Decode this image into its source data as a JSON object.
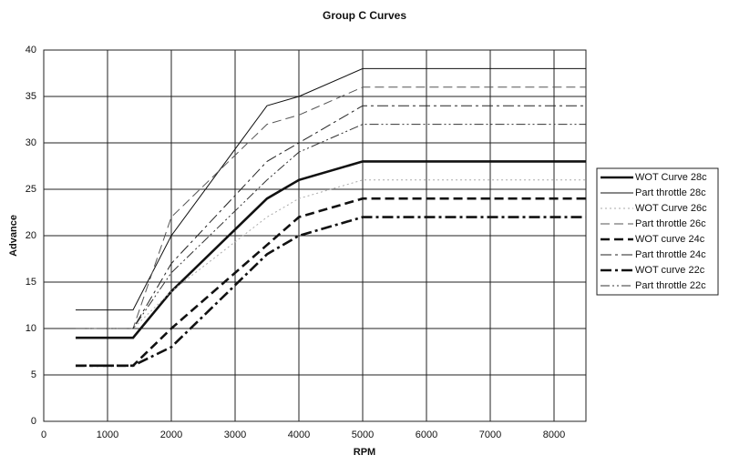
{
  "chart_data": {
    "type": "line",
    "title": "Group C Curves",
    "x_label": "RPM",
    "y_label": "Advance",
    "x": [
      500,
      1400,
      2000,
      3500,
      4000,
      5000,
      8500
    ],
    "xlim": [
      0,
      8500
    ],
    "xticks": [
      0,
      1000,
      2000,
      3000,
      4000,
      5000,
      6000,
      7000,
      8000
    ],
    "ylim": [
      0,
      40
    ],
    "yticks": [
      0,
      5,
      10,
      15,
      20,
      25,
      30,
      35,
      40
    ],
    "grid": true,
    "legend": "right",
    "series": [
      {
        "name": "WOT Curve 28c",
        "color": "#111111",
        "style": "solid",
        "weight": "heavy",
        "values": [
          9,
          9,
          14,
          24,
          26,
          28,
          28
        ]
      },
      {
        "name": "Part throttle 28c",
        "color": "#111111",
        "style": "solid",
        "weight": "light",
        "values": [
          12,
          12,
          20,
          34,
          35,
          38,
          38
        ]
      },
      {
        "name": "WOT Curve 26c",
        "color": "#aaaaaa",
        "style": "dotted",
        "weight": "light",
        "values": [
          10,
          10,
          14,
          22,
          24,
          26,
          26
        ]
      },
      {
        "name": "Part throttle 26c",
        "color": "#555555",
        "style": "dashed",
        "weight": "light",
        "values": [
          10,
          10,
          22,
          32,
          33,
          36,
          36
        ]
      },
      {
        "name": "WOT curve 24c",
        "color": "#111111",
        "style": "dashed",
        "weight": "heavy",
        "values": [
          6,
          6,
          10,
          19,
          22,
          24,
          24
        ]
      },
      {
        "name": "Part throttle 24c",
        "color": "#222222",
        "style": "dash-dot",
        "weight": "light",
        "values": [
          10,
          10,
          17,
          28,
          30,
          34,
          34
        ]
      },
      {
        "name": "WOT curve 22c",
        "color": "#111111",
        "style": "dash-dot",
        "weight": "heavy",
        "values": [
          6,
          6,
          8,
          18,
          20,
          22,
          22
        ]
      },
      {
        "name": "Part throttle 22c",
        "color": "#333333",
        "style": "dash-dot-dot",
        "weight": "light",
        "values": [
          10,
          10,
          16,
          26,
          29,
          32,
          32
        ]
      }
    ]
  }
}
